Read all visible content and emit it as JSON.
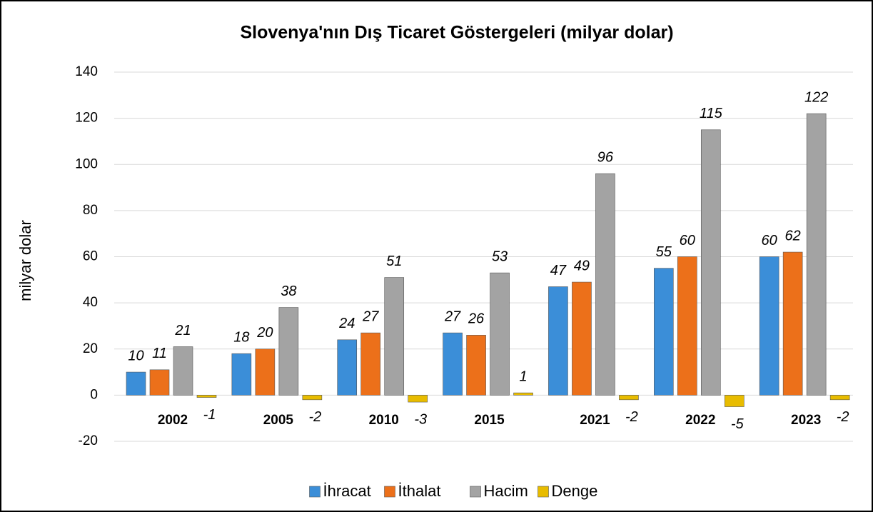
{
  "chart_data": {
    "type": "bar",
    "title": "Slovenya'nın Dış Ticaret Göstergeleri  (milyar dolar)",
    "y_label": "milyar dolar",
    "categories": [
      "2002",
      "2005",
      "2010",
      "2015",
      "2021",
      "2022",
      "2023"
    ],
    "series": [
      {
        "name": "İhracat",
        "color": "#3b8ed8",
        "values": [
          10,
          18,
          24,
          27,
          47,
          55,
          60
        ]
      },
      {
        "name": "İthalat",
        "color": "#ec701a",
        "values": [
          11,
          20,
          27,
          26,
          49,
          60,
          62
        ]
      },
      {
        "name": "Hacim",
        "color": "#a3a3a3",
        "values": [
          21,
          38,
          51,
          53,
          96,
          115,
          122
        ]
      },
      {
        "name": "Denge",
        "color": "#e8bc00",
        "values": [
          -1,
          -2,
          -3,
          1,
          -2,
          -5,
          -2
        ]
      }
    ],
    "ylim": [
      -20,
      140
    ],
    "yticks": [
      -20,
      0,
      20,
      40,
      60,
      80,
      100,
      120,
      140
    ],
    "grid": true,
    "legend": "bottom"
  }
}
